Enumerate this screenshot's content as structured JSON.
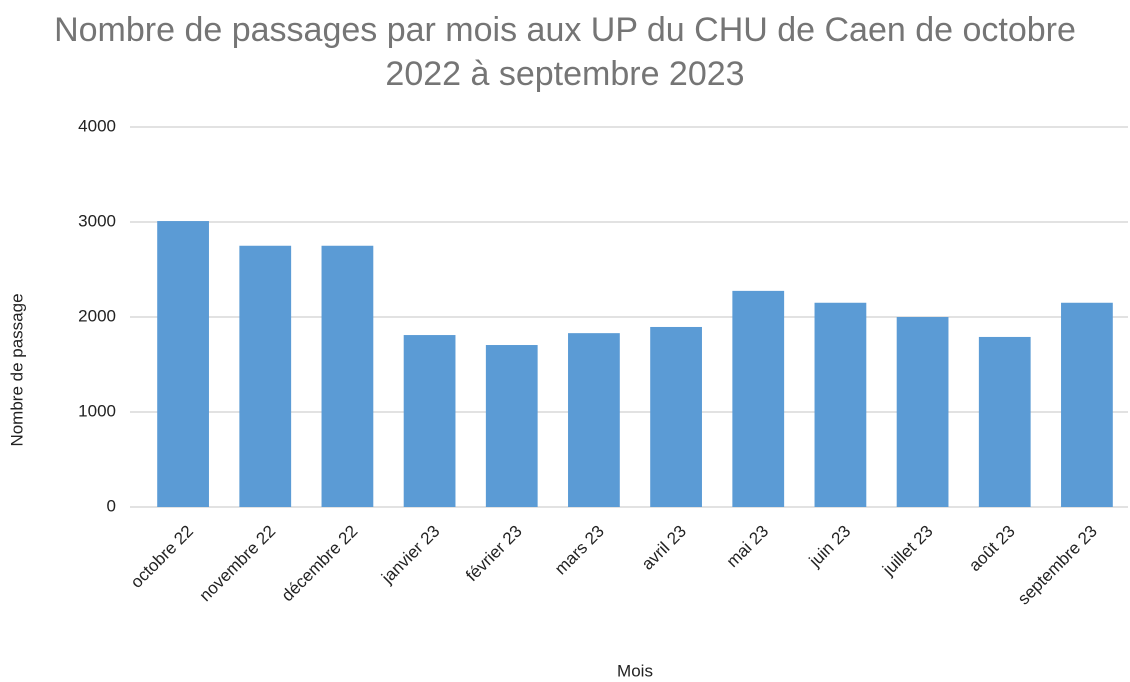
{
  "chart_data": {
    "type": "bar",
    "title": "Nombre de passages par mois aux UP du CHU de Caen de octobre 2022 à septembre 2023",
    "x_label": "Mois",
    "y_label": "Nombre de passage",
    "categories": [
      "octobre 22",
      "novembre 22",
      "décembre 22",
      "janvier 23",
      "février 23",
      "mars 23",
      "avril 23",
      "mai 23",
      "juin 23",
      "juillet 23",
      "août 23",
      "septembre 23"
    ],
    "values": [
      3010,
      2750,
      2750,
      1810,
      1705,
      1830,
      1895,
      2275,
      2150,
      2000,
      1790,
      2150
    ],
    "color": "#5b9bd5",
    "ylim": [
      0,
      4000
    ],
    "yticks": [
      0,
      1000,
      2000,
      3000,
      4000
    ],
    "grid": true
  }
}
